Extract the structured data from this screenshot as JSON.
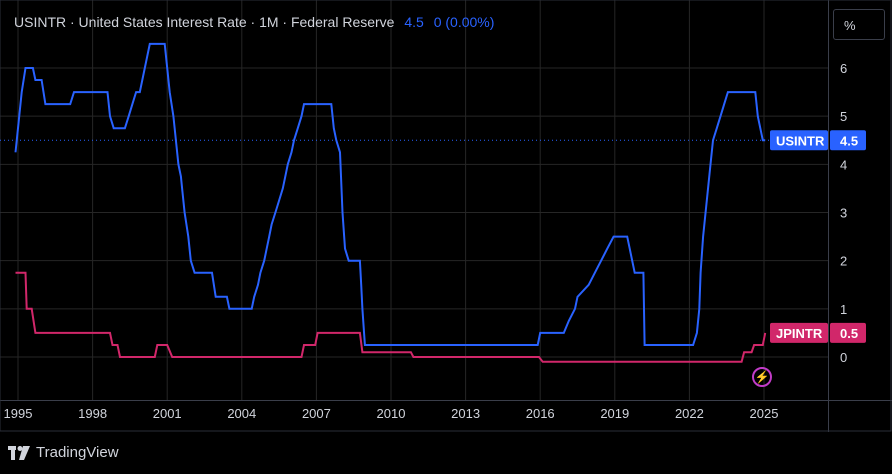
{
  "header": {
    "title": "USINTR · United States Interest Rate · 1M · Federal Reserve",
    "last_value": "4.5",
    "change": "0 (0.00%)"
  },
  "unit_label": "%",
  "branding": "TradingView",
  "colors": {
    "us": "#2962ff",
    "jp": "#d1276a",
    "grid": "#262626",
    "axis_text": "#d1d4dc"
  },
  "chart_data": {
    "type": "line",
    "x_range": [
      1994.9,
      2025.5
    ],
    "ylim": [
      -0.8,
      7.0
    ],
    "x_ticks": [
      1995,
      1998,
      2001,
      2004,
      2007,
      2010,
      2013,
      2016,
      2019,
      2022,
      2025
    ],
    "y_ticks": [
      0,
      1,
      2,
      3,
      4,
      5,
      6
    ],
    "grid": true,
    "series": [
      {
        "name": "USINTR",
        "last_label": "4.5",
        "color": "#2962ff",
        "points": [
          [
            1994.9,
            4.25
          ],
          [
            1995.0,
            4.75
          ],
          [
            1995.15,
            5.5
          ],
          [
            1995.3,
            6.0
          ],
          [
            1995.6,
            6.0
          ],
          [
            1995.7,
            5.75
          ],
          [
            1995.95,
            5.75
          ],
          [
            1996.1,
            5.25
          ],
          [
            1997.1,
            5.25
          ],
          [
            1997.25,
            5.5
          ],
          [
            1998.6,
            5.5
          ],
          [
            1998.7,
            5.0
          ],
          [
            1998.85,
            4.75
          ],
          [
            1999.3,
            4.75
          ],
          [
            1999.45,
            5.0
          ],
          [
            1999.6,
            5.25
          ],
          [
            1999.75,
            5.5
          ],
          [
            1999.9,
            5.5
          ],
          [
            2000.1,
            6.0
          ],
          [
            2000.3,
            6.5
          ],
          [
            2000.9,
            6.5
          ],
          [
            2001.0,
            6.0
          ],
          [
            2001.1,
            5.5
          ],
          [
            2001.25,
            5.0
          ],
          [
            2001.35,
            4.5
          ],
          [
            2001.45,
            4.0
          ],
          [
            2001.55,
            3.75
          ],
          [
            2001.6,
            3.5
          ],
          [
            2001.7,
            3.0
          ],
          [
            2001.85,
            2.5
          ],
          [
            2001.95,
            2.0
          ],
          [
            2002.1,
            1.75
          ],
          [
            2002.8,
            1.75
          ],
          [
            2002.95,
            1.25
          ],
          [
            2003.4,
            1.25
          ],
          [
            2003.5,
            1.0
          ],
          [
            2004.4,
            1.0
          ],
          [
            2004.5,
            1.25
          ],
          [
            2004.65,
            1.5
          ],
          [
            2004.75,
            1.75
          ],
          [
            2004.9,
            2.0
          ],
          [
            2005.0,
            2.25
          ],
          [
            2005.1,
            2.5
          ],
          [
            2005.2,
            2.75
          ],
          [
            2005.35,
            3.0
          ],
          [
            2005.5,
            3.25
          ],
          [
            2005.65,
            3.5
          ],
          [
            2005.75,
            3.75
          ],
          [
            2005.85,
            4.0
          ],
          [
            2006.0,
            4.25
          ],
          [
            2006.1,
            4.5
          ],
          [
            2006.25,
            4.75
          ],
          [
            2006.4,
            5.0
          ],
          [
            2006.5,
            5.25
          ],
          [
            2007.6,
            5.25
          ],
          [
            2007.7,
            4.75
          ],
          [
            2007.8,
            4.5
          ],
          [
            2007.95,
            4.25
          ],
          [
            2008.05,
            3.0
          ],
          [
            2008.15,
            2.25
          ],
          [
            2008.3,
            2.0
          ],
          [
            2008.75,
            2.0
          ],
          [
            2008.8,
            1.5
          ],
          [
            2008.85,
            1.0
          ],
          [
            2008.95,
            0.25
          ],
          [
            2015.9,
            0.25
          ],
          [
            2016.0,
            0.5
          ],
          [
            2016.95,
            0.5
          ],
          [
            2017.15,
            0.75
          ],
          [
            2017.4,
            1.0
          ],
          [
            2017.5,
            1.25
          ],
          [
            2017.95,
            1.5
          ],
          [
            2018.2,
            1.75
          ],
          [
            2018.45,
            2.0
          ],
          [
            2018.7,
            2.25
          ],
          [
            2018.95,
            2.5
          ],
          [
            2019.5,
            2.5
          ],
          [
            2019.6,
            2.25
          ],
          [
            2019.7,
            2.0
          ],
          [
            2019.8,
            1.75
          ],
          [
            2020.15,
            1.75
          ],
          [
            2020.2,
            0.25
          ],
          [
            2022.15,
            0.25
          ],
          [
            2022.3,
            0.5
          ],
          [
            2022.4,
            1.0
          ],
          [
            2022.45,
            1.75
          ],
          [
            2022.55,
            2.5
          ],
          [
            2022.7,
            3.25
          ],
          [
            2022.85,
            4.0
          ],
          [
            2022.95,
            4.5
          ],
          [
            2023.1,
            4.75
          ],
          [
            2023.25,
            5.0
          ],
          [
            2023.4,
            5.25
          ],
          [
            2023.55,
            5.5
          ],
          [
            2024.65,
            5.5
          ],
          [
            2024.75,
            5.0
          ],
          [
            2024.85,
            4.75
          ],
          [
            2024.95,
            4.5
          ],
          [
            2025.05,
            4.5
          ]
        ]
      },
      {
        "name": "JPINTR",
        "last_label": "0.5",
        "color": "#d1276a",
        "points": [
          [
            1994.9,
            1.75
          ],
          [
            1995.3,
            1.75
          ],
          [
            1995.35,
            1.0
          ],
          [
            1995.55,
            1.0
          ],
          [
            1995.7,
            0.5
          ],
          [
            1998.7,
            0.5
          ],
          [
            1998.8,
            0.25
          ],
          [
            1999.0,
            0.25
          ],
          [
            1999.1,
            0.0
          ],
          [
            2000.5,
            0.0
          ],
          [
            2000.6,
            0.25
          ],
          [
            2001.0,
            0.25
          ],
          [
            2001.2,
            0.0
          ],
          [
            2006.4,
            0.0
          ],
          [
            2006.5,
            0.25
          ],
          [
            2006.95,
            0.25
          ],
          [
            2007.05,
            0.5
          ],
          [
            2008.75,
            0.5
          ],
          [
            2008.85,
            0.1
          ],
          [
            2010.8,
            0.1
          ],
          [
            2010.9,
            0.0
          ],
          [
            2015.95,
            0.0
          ],
          [
            2016.1,
            -0.1
          ],
          [
            2024.1,
            -0.1
          ],
          [
            2024.2,
            0.1
          ],
          [
            2024.5,
            0.1
          ],
          [
            2024.6,
            0.25
          ],
          [
            2024.95,
            0.25
          ],
          [
            2025.05,
            0.5
          ]
        ]
      }
    ]
  }
}
